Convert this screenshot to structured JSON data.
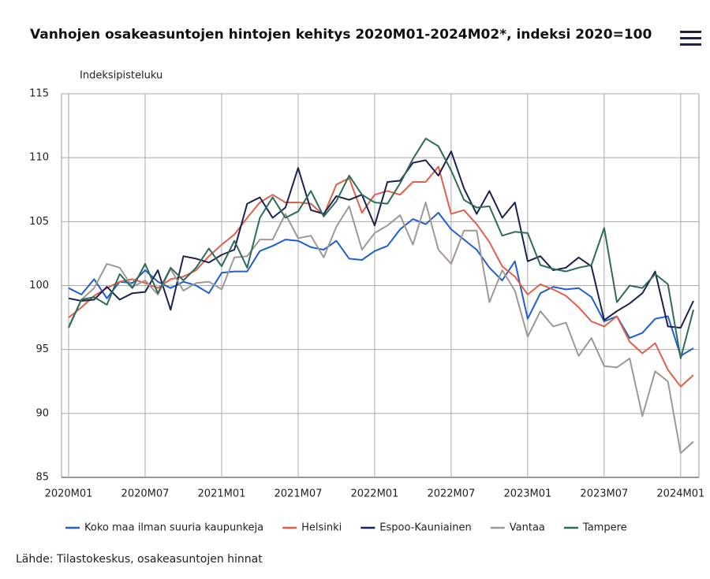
{
  "chart_data": {
    "type": "line",
    "title": "Vanhojen osakeasuntojen hintojen kehitys 2020M01-2024M02*, indeksi 2020=100",
    "y_axis_label": "Indeksipisteluku",
    "source": "Lähde: Tilastokeskus, osakeasuntojen hinnat",
    "categories": [
      "2020M01",
      null,
      null,
      null,
      null,
      null,
      "2020M07",
      null,
      null,
      null,
      null,
      null,
      "2021M01",
      null,
      null,
      null,
      null,
      null,
      "2021M07",
      null,
      null,
      null,
      null,
      null,
      "2022M01",
      null,
      null,
      null,
      null,
      null,
      "2022M07",
      null,
      null,
      null,
      null,
      null,
      "2023M01",
      null,
      null,
      null,
      null,
      null,
      "2023M07",
      null,
      null,
      null,
      null,
      null,
      "2024M01",
      null
    ],
    "ylim": [
      85,
      115
    ],
    "yticks": [
      85,
      90,
      95,
      100,
      105,
      110,
      115
    ],
    "grid": true,
    "series": [
      {
        "name": "Koko maa ilman suuria kaupunkeja",
        "color": "#1f5fd1",
        "values": [
          99.8,
          99.3,
          100.5,
          99.0,
          100.3,
          100.2,
          101.2,
          100.3,
          99.8,
          100.3,
          100.0,
          99.4,
          101.0,
          101.1,
          101.1,
          102.7,
          103.1,
          103.6,
          103.5,
          103.0,
          102.8,
          103.5,
          102.1,
          102.0,
          102.7,
          103.1,
          104.4,
          105.2,
          104.8,
          105.7,
          104.4,
          103.6,
          102.8,
          101.4,
          100.4,
          101.9,
          97.4,
          99.4,
          99.9,
          99.7,
          99.8,
          99.1,
          97.2,
          97.6,
          95.9,
          96.3,
          97.4,
          97.6,
          94.5,
          95.1
        ]
      },
      {
        "name": "Helsinki",
        "color": "#e0604a",
        "values": [
          97.5,
          98.3,
          99.2,
          99.8,
          100.3,
          100.5,
          100.2,
          99.8,
          100.5,
          100.7,
          101.2,
          102.3,
          103.2,
          104.0,
          105.3,
          106.5,
          107.1,
          106.5,
          106.5,
          106.4,
          105.5,
          107.9,
          108.4,
          105.7,
          107.1,
          107.4,
          107.1,
          108.1,
          108.1,
          109.3,
          105.6,
          105.9,
          104.8,
          103.4,
          101.5,
          100.7,
          99.3,
          100.1,
          99.7,
          99.2,
          98.3,
          97.2,
          96.8,
          97.6,
          95.6,
          94.7,
          95.5,
          93.4,
          92.1,
          93.0
        ]
      },
      {
        "name": "Espoo-Kauniainen",
        "color": "#1a2350",
        "values": [
          99.0,
          98.8,
          98.9,
          99.9,
          98.9,
          99.4,
          99.5,
          101.2,
          98.1,
          102.3,
          102.1,
          101.8,
          102.4,
          102.8,
          106.4,
          106.9,
          105.3,
          106.1,
          109.2,
          105.9,
          105.6,
          107.0,
          106.7,
          107.1,
          104.7,
          108.1,
          108.2,
          109.6,
          109.8,
          108.6,
          110.5,
          107.6,
          105.6,
          107.4,
          105.3,
          106.5,
          101.9,
          102.3,
          101.2,
          101.4,
          102.2,
          101.5,
          97.3,
          98.0,
          98.6,
          99.4,
          101.1,
          96.8,
          96.7,
          98.8
        ]
      },
      {
        "name": "Vantaa",
        "color": "#a09894",
        "values": [
          96.8,
          98.9,
          99.8,
          101.7,
          101.4,
          99.9,
          100.4,
          99.3,
          101.3,
          99.6,
          100.2,
          100.3,
          99.7,
          102.2,
          102.3,
          103.6,
          103.6,
          105.6,
          103.7,
          103.9,
          102.2,
          104.6,
          106.2,
          102.8,
          104.1,
          104.7,
          105.5,
          103.2,
          106.5,
          102.8,
          101.7,
          104.3,
          104.3,
          98.7,
          101.2,
          99.6,
          96.0,
          98.0,
          96.8,
          97.1,
          94.5,
          95.9,
          93.7,
          93.6,
          94.3,
          89.8,
          93.3,
          92.5,
          86.9,
          87.8
        ]
      },
      {
        "name": "Tampere",
        "color": "#2e6b5b",
        "values": [
          96.7,
          98.9,
          99.1,
          98.5,
          100.9,
          99.8,
          101.7,
          99.4,
          101.4,
          100.4,
          101.4,
          102.9,
          101.5,
          103.5,
          101.4,
          105.3,
          106.9,
          105.3,
          105.8,
          107.4,
          105.4,
          106.6,
          108.6,
          107.1,
          106.5,
          106.4,
          108.0,
          109.9,
          111.5,
          110.9,
          109.0,
          106.7,
          106.1,
          106.2,
          103.9,
          104.2,
          104.1,
          101.6,
          101.3,
          101.1,
          101.4,
          101.6,
          104.5,
          98.7,
          100.0,
          99.8,
          100.9,
          100.1,
          94.3,
          98.1
        ]
      }
    ]
  }
}
